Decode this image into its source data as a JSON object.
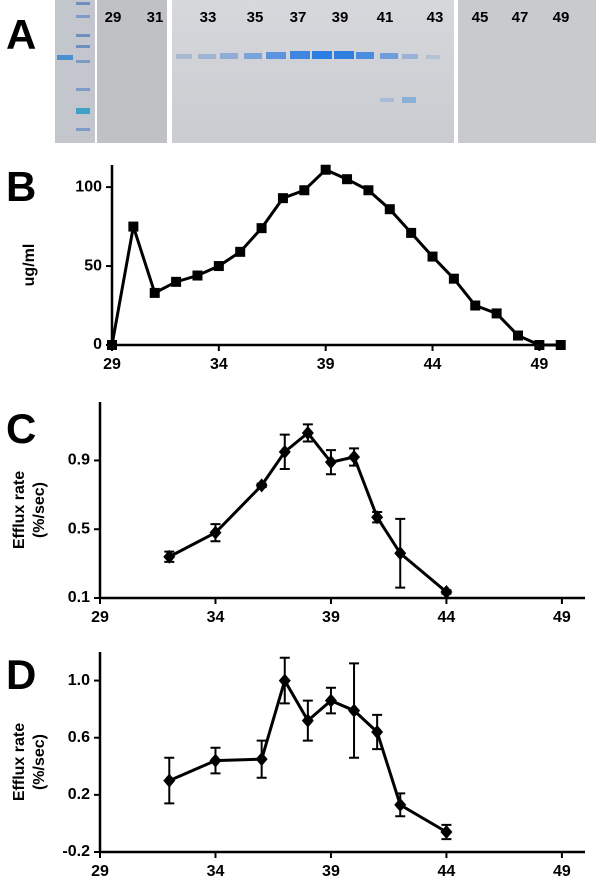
{
  "gel": {
    "panel_label": "A",
    "lanes": [
      "29",
      "31",
      "33",
      "35",
      "37",
      "39",
      "41",
      "43",
      "45",
      "47",
      "49"
    ]
  },
  "chart_data": [
    {
      "type": "line",
      "panel_label": "B",
      "y_label": [
        "ug/ml"
      ],
      "marker": "square",
      "color": "#000000",
      "x": [
        29,
        30,
        31,
        32,
        33,
        34,
        35,
        36,
        37,
        38,
        39,
        40,
        41,
        42,
        43,
        44,
        45,
        46,
        47,
        48,
        49,
        50
      ],
      "series": [
        {
          "values": [
            0,
            75,
            33,
            40,
            44,
            50,
            59,
            74,
            93,
            98,
            111,
            105,
            98,
            86,
            71,
            56,
            42,
            25,
            20,
            6,
            0,
            0
          ]
        }
      ],
      "xlim": [
        29,
        50.2
      ],
      "xticks": [
        29,
        34,
        39,
        44,
        49
      ],
      "ylim": [
        0,
        114
      ],
      "yticks": [
        0,
        50,
        100
      ]
    },
    {
      "type": "line",
      "panel_label": "C",
      "y_label": [
        "Efflux rate",
        "(%/sec)"
      ],
      "marker": "diamond",
      "color": "#000000",
      "x": [
        32,
        34,
        36,
        37,
        38,
        39,
        40,
        41,
        42,
        44
      ],
      "series": [
        {
          "values": [
            0.34,
            0.48,
            0.755,
            0.95,
            1.06,
            0.89,
            0.92,
            0.57,
            0.36,
            0.135
          ],
          "errors": [
            0.03,
            0.05,
            0.01,
            0.1,
            0.05,
            0.07,
            0.05,
            0.03,
            0.2,
            0.01
          ]
        }
      ],
      "xlim": [
        29,
        50
      ],
      "xticks": [
        29,
        34,
        39,
        44,
        49
      ],
      "ylim": [
        0.1,
        1.24
      ],
      "yticks": [
        0.1,
        0.5,
        0.9
      ]
    },
    {
      "type": "line",
      "panel_label": "D",
      "y_label": [
        "Efflux rate",
        "(%/sec)"
      ],
      "marker": "diamond",
      "color": "#000000",
      "x": [
        32,
        34,
        36,
        37,
        38,
        39,
        40,
        41,
        42,
        44
      ],
      "series": [
        {
          "values": [
            0.3,
            0.44,
            0.45,
            1.0,
            0.72,
            0.86,
            0.79,
            0.64,
            0.13,
            -0.06
          ],
          "errors": [
            0.16,
            0.09,
            0.13,
            0.16,
            0.14,
            0.09,
            0.33,
            0.12,
            0.08,
            0.05
          ]
        }
      ],
      "xlim": [
        29,
        50
      ],
      "xticks": [
        29,
        34,
        39,
        44,
        49
      ],
      "ylim": [
        -0.2,
        1.2
      ],
      "yticks": [
        -0.2,
        0.2,
        0.6,
        {
          "value": 1,
          "label": "1.0"
        }
      ]
    }
  ]
}
